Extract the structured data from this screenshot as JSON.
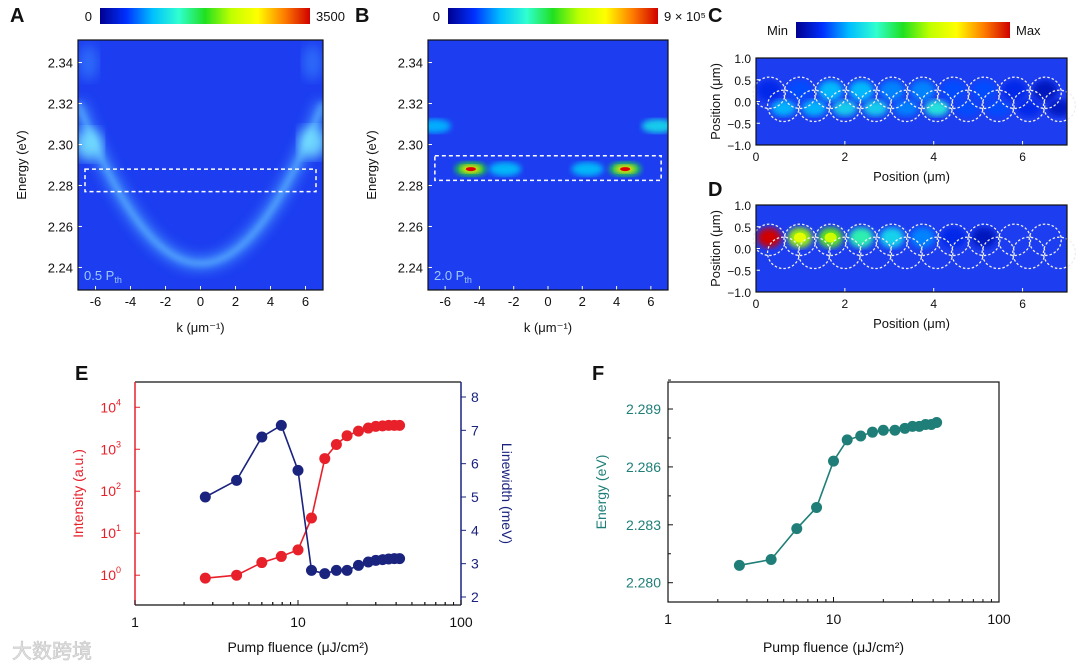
{
  "figure": {
    "panel_labels": [
      "A",
      "B",
      "C",
      "D",
      "E",
      "F"
    ],
    "watermark": "大数跨境",
    "colormap": [
      "#00008f",
      "#0030ff",
      "#00bfff",
      "#30ffd0",
      "#20e020",
      "#c0ff00",
      "#ffff00",
      "#ff8000",
      "#d00000"
    ]
  },
  "chart_data": [
    {
      "id": "A",
      "type": "heatmap",
      "title": "",
      "xlabel": "k (μm⁻¹)",
      "ylabel": "Energy (eV)",
      "xlim": [
        -7,
        7
      ],
      "ylim": [
        2.229,
        2.351
      ],
      "xticks": [
        "-6",
        "-4",
        "-2",
        "0",
        "2",
        "4",
        "6"
      ],
      "xtick_values": [
        -6,
        -4,
        -2,
        0,
        2,
        4,
        6
      ],
      "yticks": [
        "2.24",
        "2.26",
        "2.28",
        "2.30",
        "2.32",
        "2.34"
      ],
      "ytick_values": [
        2.24,
        2.26,
        2.28,
        2.3,
        2.32,
        2.34
      ],
      "colorbar": {
        "min_label": "0",
        "max_label": "3500"
      },
      "annotation": "0.5 P",
      "annotation_sub": "th",
      "highlight_box": {
        "k": [
          -6.6,
          6.6
        ],
        "energy": [
          2.277,
          2.288
        ]
      },
      "dispersion": {
        "e0": 2.242,
        "curvature": 0.0016
      }
    },
    {
      "id": "B",
      "type": "heatmap",
      "title": "",
      "xlabel": "k (μm⁻¹)",
      "ylabel": "Energy (eV)",
      "xlim": [
        -7,
        7
      ],
      "ylim": [
        2.229,
        2.351
      ],
      "xticks": [
        "-6",
        "-4",
        "-2",
        "0",
        "2",
        "4",
        "6"
      ],
      "xtick_values": [
        -6,
        -4,
        -2,
        0,
        2,
        4,
        6
      ],
      "yticks": [
        "2.24",
        "2.26",
        "2.28",
        "2.30",
        "2.32",
        "2.34"
      ],
      "ytick_values": [
        2.24,
        2.26,
        2.28,
        2.3,
        2.32,
        2.34
      ],
      "colorbar": {
        "min_label": "0",
        "max_label": "9 × 10⁵"
      },
      "annotation": "2.0 P",
      "annotation_sub": "th",
      "highlight_box": {
        "k": [
          -6.6,
          6.6
        ],
        "energy": [
          2.2825,
          2.2945
        ]
      },
      "peaks": [
        {
          "k": -4.5,
          "energy": 2.288,
          "level": 1.0
        },
        {
          "k": 4.5,
          "energy": 2.288,
          "level": 0.95
        },
        {
          "k": -2.5,
          "energy": 2.288,
          "level": 0.2
        },
        {
          "k": 2.3,
          "energy": 2.288,
          "level": 0.2
        },
        {
          "k": 6.4,
          "energy": 2.309,
          "level": 0.35
        },
        {
          "k": -6.6,
          "energy": 2.309,
          "level": 0.15
        }
      ]
    },
    {
      "id": "C",
      "type": "heatmap",
      "xlabel": "Position (μm)",
      "ylabel": "Position (μm)",
      "xlim": [
        0,
        7
      ],
      "ylim": [
        -1,
        1
      ],
      "xticks": [
        "0",
        "2",
        "4",
        "6"
      ],
      "xtick_values": [
        0,
        2,
        4,
        6
      ],
      "yticks": [
        "−1.0",
        "−0.5",
        "0.0",
        "0.5",
        "1.0"
      ],
      "ytick_values": [
        -1,
        -0.5,
        0,
        0.5,
        1
      ],
      "colorbar": {
        "min_label": "Min",
        "max_label": "Max"
      },
      "spots_top": [
        0.1,
        0.15,
        0.25,
        0.25,
        0.2,
        0.2,
        0.15,
        0.15,
        0.1,
        0.05
      ],
      "spots_bottom": [
        0.25,
        0.25,
        0.3,
        0.3,
        0.2,
        0.35,
        0.15,
        0.15,
        0.1,
        0.05
      ]
    },
    {
      "id": "D",
      "type": "heatmap",
      "xlabel": "Position (μm)",
      "ylabel": "Position (μm)",
      "xlim": [
        0,
        7
      ],
      "ylim": [
        -1,
        1
      ],
      "xticks": [
        "0",
        "2",
        "4",
        "6"
      ],
      "xtick_values": [
        0,
        2,
        4,
        6
      ],
      "yticks": [
        "−1.0",
        "−0.5",
        "0.0",
        "0.5",
        "1.0"
      ],
      "ytick_values": [
        -1,
        -0.5,
        0,
        0.5,
        1
      ],
      "spots_top": [
        1.0,
        0.6,
        0.55,
        0.4,
        0.3,
        0.2,
        0.1,
        0.05,
        0.0,
        0.0
      ],
      "spots_bottom": [
        0,
        0,
        0,
        0,
        0,
        0,
        0,
        0,
        0,
        0
      ]
    },
    {
      "id": "E",
      "type": "scatter",
      "xlabel": "Pump fluence (μJ/cm²)",
      "xscale": "log",
      "xlim": [
        1,
        100
      ],
      "xticks": [
        "1",
        "10",
        "100"
      ],
      "xtick_values": [
        1,
        10,
        100
      ],
      "x": [
        2.7,
        4.2,
        6.0,
        7.9,
        10.0,
        12.1,
        14.6,
        17.2,
        20.0,
        23.5,
        27.0,
        30.0,
        33.0,
        36.0,
        39.0,
        42.0
      ],
      "series": [
        {
          "name": "Intensity (a.u.)",
          "axis": "left",
          "color": "#e8202a",
          "yscale": "log",
          "ylim": [
            0.195,
            40000
          ],
          "yticks": [
            "10",
            "10",
            "10",
            "10",
            "10"
          ],
          "ytick_exp": [
            "0",
            "1",
            "2",
            "3",
            "4"
          ],
          "ytick_values": [
            1,
            10,
            100,
            1000,
            10000
          ],
          "values": [
            0.85,
            1.0,
            2.0,
            2.8,
            4.0,
            23,
            600,
            1300,
            2100,
            2700,
            3200,
            3500,
            3600,
            3700,
            3700,
            3700
          ]
        },
        {
          "name": "Linewidth (meV)",
          "axis": "right",
          "color": "#1a237e",
          "yscale": "linear",
          "ylim": [
            1.76,
            8.45
          ],
          "yticks": [
            "2",
            "3",
            "4",
            "5",
            "6",
            "7",
            "8"
          ],
          "ytick_values": [
            2,
            3,
            4,
            5,
            6,
            7,
            8
          ],
          "values": [
            5.0,
            5.5,
            6.8,
            7.15,
            5.8,
            2.8,
            2.7,
            2.8,
            2.8,
            2.95,
            3.05,
            3.1,
            3.12,
            3.14,
            3.15,
            3.15
          ]
        }
      ]
    },
    {
      "id": "F",
      "type": "scatter",
      "xlabel": "Pump fluence (μJ/cm²)",
      "ylabel": "Energy (eV)",
      "xscale": "log",
      "xlim": [
        1,
        100
      ],
      "xticks": [
        "1",
        "10",
        "100"
      ],
      "xtick_values": [
        1,
        10,
        100
      ],
      "ylim": [
        2.279,
        2.2904
      ],
      "yticks": [
        "2.280",
        "2.283",
        "2.286",
        "2.289"
      ],
      "ytick_values": [
        2.28,
        2.283,
        2.286,
        2.289
      ],
      "color": "#1f7f78",
      "x": [
        2.7,
        4.2,
        6.0,
        7.9,
        10.0,
        12.1,
        14.6,
        17.2,
        20.0,
        23.5,
        27.0,
        30.0,
        33.0,
        36.0,
        39.0,
        42.0
      ],
      "values": [
        2.2809,
        2.2812,
        2.2828,
        2.2839,
        2.2863,
        2.2874,
        2.2876,
        2.2878,
        2.2879,
        2.2879,
        2.288,
        2.2881,
        2.2881,
        2.2882,
        2.2882,
        2.2883
      ]
    }
  ]
}
